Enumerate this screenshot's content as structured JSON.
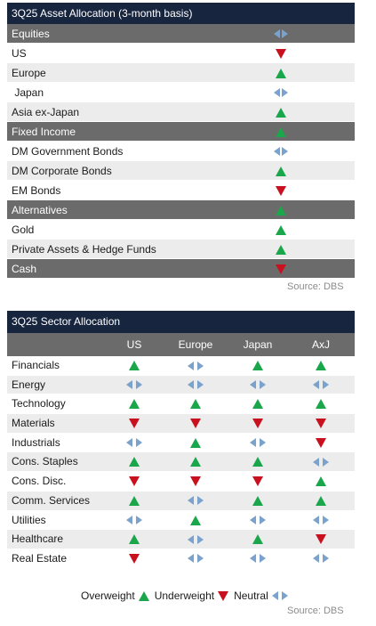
{
  "asset_allocation": {
    "title": "3Q25 Asset Allocation (3-month basis)",
    "rows": [
      {
        "label": "Equities",
        "type": "category",
        "signal": "neutral"
      },
      {
        "label": "US",
        "type": "item",
        "signal": "down"
      },
      {
        "label": "Europe",
        "type": "item",
        "signal": "up"
      },
      {
        "label": " Japan",
        "type": "item",
        "signal": "neutral"
      },
      {
        "label": "Asia ex-Japan",
        "type": "item",
        "signal": "up"
      },
      {
        "label": "Fixed Income",
        "type": "category",
        "signal": "up"
      },
      {
        "label": "DM Government Bonds",
        "type": "item",
        "signal": "neutral"
      },
      {
        "label": "DM Corporate Bonds",
        "type": "item",
        "signal": "up"
      },
      {
        "label": "EM Bonds",
        "type": "item",
        "signal": "down"
      },
      {
        "label": "Alternatives",
        "type": "category",
        "signal": "up"
      },
      {
        "label": "Gold",
        "type": "item",
        "signal": "up"
      },
      {
        "label": "Private Assets & Hedge Funds",
        "type": "item",
        "signal": "up"
      },
      {
        "label": "Cash",
        "type": "category",
        "signal": "down"
      }
    ],
    "source": "Source: DBS"
  },
  "sector_allocation": {
    "title": "3Q25 Sector Allocation",
    "columns": [
      "US",
      "Europe",
      "Japan",
      "AxJ"
    ],
    "rows": [
      {
        "label": "Financials",
        "signals": [
          "up",
          "neutral",
          "up",
          "up"
        ]
      },
      {
        "label": "Energy",
        "signals": [
          "neutral",
          "neutral",
          "neutral",
          "neutral"
        ]
      },
      {
        "label": "Technology",
        "signals": [
          "up",
          "up",
          "up",
          "up"
        ]
      },
      {
        "label": "Materials",
        "signals": [
          "down",
          "down",
          "down",
          "down"
        ]
      },
      {
        "label": "Industrials",
        "signals": [
          "neutral",
          "up",
          "neutral",
          "down"
        ]
      },
      {
        "label": "Cons. Staples",
        "signals": [
          "up",
          "up",
          "up",
          "neutral"
        ]
      },
      {
        "label": "Cons. Disc.",
        "signals": [
          "down",
          "down",
          "down",
          "up"
        ]
      },
      {
        "label": "Comm. Services",
        "signals": [
          "up",
          "neutral",
          "up",
          "up"
        ]
      },
      {
        "label": "Utilities",
        "signals": [
          "neutral",
          "up",
          "neutral",
          "neutral"
        ]
      },
      {
        "label": "Healthcare",
        "signals": [
          "up",
          "neutral",
          "up",
          "down"
        ]
      },
      {
        "label": "Real Estate",
        "signals": [
          "down",
          "neutral",
          "neutral",
          "neutral"
        ]
      }
    ],
    "source": "Source: DBS"
  },
  "legend": {
    "overweight": "Overweight",
    "underweight": "Underweight",
    "neutral": "Neutral"
  },
  "colors": {
    "title_bar": "#17253f",
    "category_bar": "#6b6b6b",
    "up": "#1aa64a",
    "down": "#c8101e",
    "neutral": "#7aa2cc"
  }
}
